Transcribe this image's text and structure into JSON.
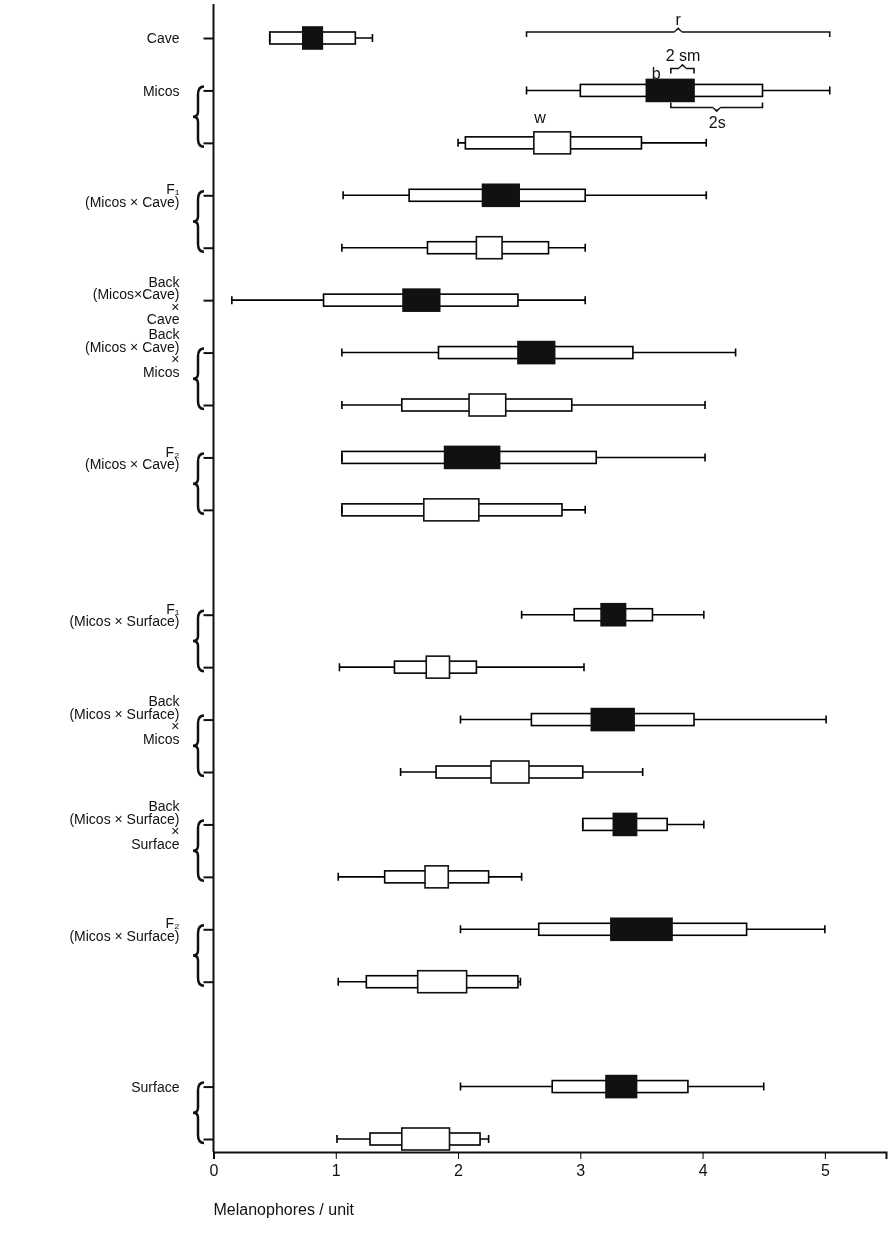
{
  "chart_data": {
    "type": "box",
    "orientation": "horizontal",
    "xlabel": "Melanophores / unit",
    "xlim": [
      0,
      5.5
    ],
    "xticks": [
      0,
      1,
      2,
      3,
      4,
      5
    ],
    "categories": [
      "Cave",
      "Micos",
      null,
      "F₁\n(Micos × Cave)",
      null,
      "Back\n(Micos×Cave)\n×\nCave",
      "Back\n(Micos × Cave)\n×\nMicos",
      null,
      "F₂\n(Micos × Cave)",
      null,
      null,
      "F₁\n(Micos × Surface)",
      null,
      "Back\n(Micos × Surface)\n×\nMicos",
      null,
      "Back\n(Micos × Surface)\n×\nSurface",
      null,
      "F₂\n(Micos × Surface)",
      null,
      null,
      "Surface",
      null
    ],
    "series": [
      {
        "color": "#000000",
        "boxes": [
          {
            "low": 0.46,
            "q1": 0.46,
            "median": 0.81,
            "q3": 1.16,
            "high": 1.3
          },
          {
            "low": 2.56,
            "q1": 3.0,
            "median": 3.74,
            "q3": 4.49,
            "high": 5.04
          },
          {
            "low": 2.0,
            "q1": 2.06,
            "median": 2.77,
            "q3": 3.5,
            "high": 4.03
          },
          {
            "low": 1.06,
            "q1": 1.6,
            "median": 2.35,
            "q3": 3.04,
            "high": 4.03
          },
          {
            "low": 1.05,
            "q1": 1.75,
            "median": 2.25,
            "q3": 2.74,
            "high": 3.04
          },
          {
            "low": 0.15,
            "q1": 0.9,
            "median": 1.71,
            "q3": 2.49,
            "high": 3.04
          },
          {
            "low": 1.05,
            "q1": 1.84,
            "median": 2.64,
            "q3": 3.43,
            "high": 4.27
          },
          {
            "low": 1.05,
            "q1": 1.54,
            "median": 2.24,
            "q3": 2.93,
            "high": 4.02
          },
          {
            "low": 1.05,
            "q1": 1.05,
            "median": 2.11,
            "q3": 3.13,
            "high": 4.02
          },
          {
            "low": 1.05,
            "q1": 1.05,
            "median": 1.94,
            "q3": 2.85,
            "high": 3.04
          },
          null,
          {
            "low": 2.52,
            "q1": 2.95,
            "median": 3.27,
            "q3": 3.59,
            "high": 4.01
          },
          {
            "low": 1.03,
            "q1": 1.48,
            "median": 1.83,
            "q3": 2.15,
            "high": 3.03
          },
          {
            "low": 2.02,
            "q1": 2.6,
            "median": 3.26,
            "q3": 3.93,
            "high": 5.01
          },
          {
            "low": 1.53,
            "q1": 1.82,
            "median": 2.42,
            "q3": 3.02,
            "high": 3.51
          },
          {
            "low": 3.02,
            "q1": 3.02,
            "median": 3.36,
            "q3": 3.71,
            "high": 4.01
          },
          {
            "low": 1.02,
            "q1": 1.4,
            "median": 1.82,
            "q3": 2.25,
            "high": 2.52
          },
          {
            "low": 2.02,
            "q1": 2.66,
            "median": 3.51,
            "q3": 4.36,
            "high": 5.0
          },
          {
            "low": 1.02,
            "q1": 1.25,
            "median": 1.86,
            "q3": 2.49,
            "high": 2.51
          },
          null,
          {
            "low": 2.02,
            "q1": 2.77,
            "median": 3.34,
            "q3": 3.88,
            "high": 4.5
          },
          {
            "low": 1.01,
            "q1": 1.28,
            "median": 1.73,
            "q3": 2.18,
            "high": 2.25
          }
        ]
      },
      {
        "type": "bar",
        "base": [
          0.73,
          3.54,
          2.62,
          2.2,
          2.15,
          1.55,
          2.49,
          2.09,
          1.89,
          1.72,
          null,
          3.17,
          1.74,
          3.09,
          2.27,
          3.27,
          1.73,
          3.25,
          1.67,
          null,
          3.21,
          1.54
        ],
        "values": [
          0.16,
          0.39,
          0.3,
          0.3,
          0.21,
          0.3,
          0.3,
          0.3,
          0.45,
          0.45,
          null,
          0.2,
          0.19,
          0.35,
          0.31,
          0.19,
          0.19,
          0.5,
          0.4,
          null,
          0.25,
          0.39
        ],
        "colors": [
          "#111111",
          "#111111",
          "#ffffff",
          "#111111",
          "#ffffff",
          "#111111",
          "#111111",
          "#ffffff",
          "#111111",
          "#ffffff",
          null,
          "#111111",
          "#ffffff",
          "#111111",
          "#ffffff",
          "#111111",
          "#ffffff",
          "#111111",
          "#ffffff",
          null,
          "#111111",
          "#ffffff"
        ]
      }
    ],
    "annotations": [
      "r",
      "2 sm",
      "b",
      "2s",
      "w"
    ]
  }
}
